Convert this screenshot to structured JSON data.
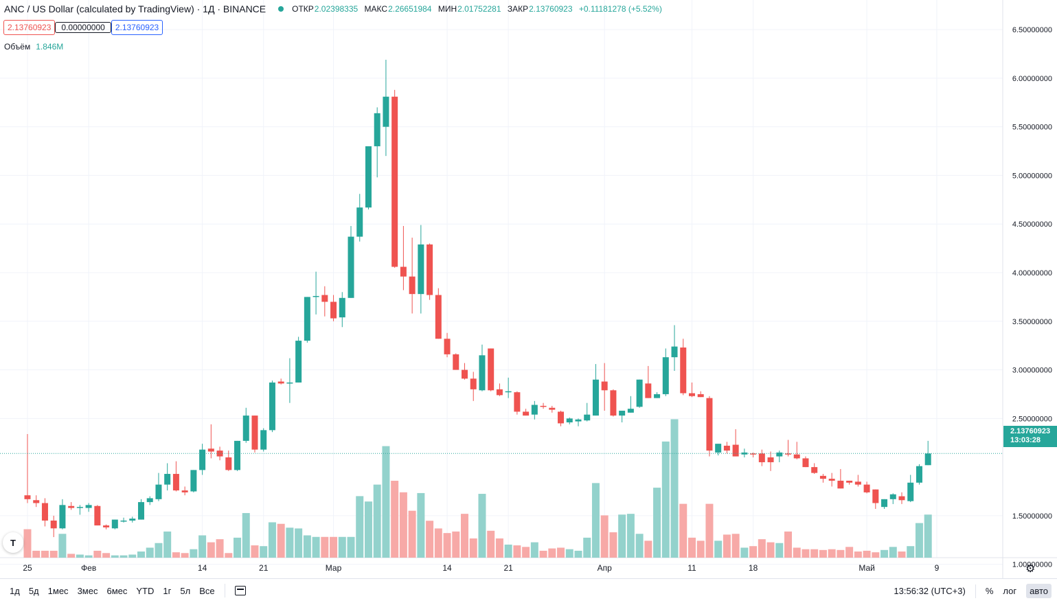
{
  "header": {
    "symbol": "ANC / US Dollar (calculated by TradingView) · 1Д · BINANCE",
    "open_label": "ОТКР",
    "open_value": "2.02398335",
    "high_label": "МАКС",
    "high_value": "2.26651984",
    "low_label": "МИН",
    "low_value": "2.01752281",
    "close_label": "ЗАКР",
    "close_value": "2.13760923",
    "change": "+0.11181278 (+5.52%)"
  },
  "price_boxes": {
    "sell": "2.13760923",
    "spread": "0.00000000",
    "buy": "2.13760923"
  },
  "volume_legend": {
    "label": "Объём",
    "value": "1.846M"
  },
  "last_price": {
    "value": "2.13760923",
    "countdown": "13:03:28"
  },
  "logo_text": "T",
  "timeframes": [
    "1д",
    "5д",
    "1мес",
    "3мес",
    "6мес",
    "YTD",
    "1г",
    "5л",
    "Все"
  ],
  "bottom_right": {
    "clock": "13:56:32 (UTC+3)",
    "percent": "%",
    "log": "лог",
    "auto": "авто"
  },
  "colors": {
    "up": "#26a69a",
    "down": "#ef5350",
    "up_volume": "#93d2cc",
    "down_volume": "#f7a9a7",
    "grid": "#f0f3fa",
    "text": "#131722"
  },
  "icons": {
    "calendar": "calendar-range-icon",
    "settings": "gear-icon"
  },
  "chart_data": {
    "type": "candlestick",
    "ylim": [
      0.8,
      6.55
    ],
    "y_ticks": [
      "6.50000000",
      "6.00000000",
      "5.50000000",
      "5.00000000",
      "4.50000000",
      "4.00000000",
      "3.50000000",
      "3.00000000",
      "2.50000000",
      "1.50000000",
      "1.00000000"
    ],
    "y_tick_values": [
      6.5,
      6.0,
      5.5,
      5.0,
      4.5,
      4.0,
      3.5,
      3.0,
      2.5,
      1.5,
      1.0
    ],
    "x_ticks": [
      {
        "label": "25",
        "index": 0
      },
      {
        "label": "Фев",
        "index": 7
      },
      {
        "label": "14",
        "index": 20
      },
      {
        "label": "21",
        "index": 27
      },
      {
        "label": "Мар",
        "index": 35
      },
      {
        "label": "14",
        "index": 48
      },
      {
        "label": "21",
        "index": 55
      },
      {
        "label": "Апр",
        "index": 66
      },
      {
        "label": "11",
        "index": 76
      },
      {
        "label": "18",
        "index": 83
      },
      {
        "label": "Май",
        "index": 96
      },
      {
        "label": "9",
        "index": 104
      }
    ],
    "candles": [
      [
        1.71,
        2.34,
        1.63,
        1.67,
        0.37
      ],
      [
        1.66,
        1.71,
        1.59,
        1.63,
        0.09
      ],
      [
        1.63,
        1.68,
        1.39,
        1.45,
        0.09
      ],
      [
        1.45,
        1.5,
        1.28,
        1.37,
        0.09
      ],
      [
        1.37,
        1.67,
        1.36,
        1.61,
        0.31
      ],
      [
        1.6,
        1.64,
        1.56,
        1.58,
        0.05
      ],
      [
        1.59,
        1.61,
        1.51,
        1.59,
        0.04
      ],
      [
        1.58,
        1.63,
        1.54,
        1.61,
        0.03
      ],
      [
        1.6,
        1.61,
        1.4,
        1.4,
        0.09
      ],
      [
        1.4,
        1.41,
        1.36,
        1.38,
        0.06
      ],
      [
        1.37,
        1.46,
        1.36,
        1.46,
        0.03
      ],
      [
        1.45,
        1.48,
        1.43,
        1.45,
        0.03
      ],
      [
        1.45,
        1.49,
        1.43,
        1.47,
        0.04
      ],
      [
        1.46,
        1.67,
        1.46,
        1.64,
        0.08
      ],
      [
        1.64,
        1.7,
        1.61,
        1.68,
        0.13
      ],
      [
        1.67,
        1.94,
        1.65,
        1.82,
        0.19
      ],
      [
        1.82,
        2.04,
        1.76,
        1.93,
        0.34
      ],
      [
        1.93,
        2.06,
        1.75,
        1.76,
        0.07
      ],
      [
        1.76,
        1.8,
        1.71,
        1.74,
        0.06
      ],
      [
        1.75,
        1.97,
        1.74,
        1.97,
        0.11
      ],
      [
        1.97,
        2.24,
        1.92,
        2.18,
        0.29
      ],
      [
        2.19,
        2.44,
        2.09,
        2.16,
        0.2
      ],
      [
        2.17,
        2.21,
        2.07,
        2.11,
        0.24
      ],
      [
        2.1,
        2.17,
        1.96,
        1.97,
        0.06
      ],
      [
        1.97,
        2.27,
        1.96,
        2.27,
        0.26
      ],
      [
        2.27,
        2.61,
        2.25,
        2.53,
        0.58
      ],
      [
        2.53,
        2.52,
        2.15,
        2.18,
        0.16
      ],
      [
        2.18,
        2.4,
        2.16,
        2.38,
        0.15
      ],
      [
        2.38,
        2.89,
        2.36,
        2.87,
        0.46
      ],
      [
        2.88,
        2.91,
        2.85,
        2.86,
        0.44
      ],
      [
        2.86,
        3.12,
        2.66,
        2.87,
        0.39
      ],
      [
        2.87,
        3.34,
        2.88,
        3.3,
        0.38
      ],
      [
        3.3,
        3.74,
        3.28,
        3.75,
        0.29
      ],
      [
        3.75,
        4.01,
        3.57,
        3.76,
        0.27
      ],
      [
        3.77,
        3.86,
        3.55,
        3.7,
        0.27
      ],
      [
        3.7,
        3.77,
        3.5,
        3.53,
        0.27
      ],
      [
        3.54,
        3.8,
        3.44,
        3.74,
        0.27
      ],
      [
        3.74,
        4.48,
        3.74,
        4.37,
        0.27
      ],
      [
        4.37,
        4.81,
        4.32,
        4.67,
        0.8
      ],
      [
        4.67,
        5.28,
        4.65,
        5.3,
        0.73
      ],
      [
        5.3,
        5.7,
        4.98,
        5.64,
        0.95
      ],
      [
        5.5,
        6.19,
        5.2,
        5.81,
        1.45
      ],
      [
        5.81,
        5.88,
        4.05,
        4.06,
        1.0
      ],
      [
        4.06,
        4.48,
        3.82,
        3.96,
        0.85
      ],
      [
        3.96,
        4.36,
        3.58,
        3.78,
        0.61
      ],
      [
        3.78,
        4.49,
        3.58,
        4.29,
        0.84
      ],
      [
        4.29,
        4.3,
        3.72,
        3.77,
        0.48
      ],
      [
        3.77,
        3.84,
        3.32,
        3.32,
        0.38
      ],
      [
        3.32,
        3.38,
        3.13,
        3.16,
        0.32
      ],
      [
        3.16,
        3.17,
        3.03,
        3.0,
        0.34
      ],
      [
        3.0,
        3.07,
        2.9,
        2.91,
        0.57
      ],
      [
        2.91,
        2.98,
        2.68,
        2.8,
        0.25
      ],
      [
        2.79,
        3.26,
        2.78,
        3.15,
        0.83
      ],
      [
        3.22,
        3.2,
        2.78,
        2.79,
        0.35
      ],
      [
        2.8,
        2.86,
        2.73,
        2.74,
        0.25
      ],
      [
        2.77,
        2.92,
        2.71,
        2.78,
        0.17
      ],
      [
        2.77,
        2.78,
        2.54,
        2.57,
        0.16
      ],
      [
        2.57,
        2.6,
        2.53,
        2.53,
        0.14
      ],
      [
        2.54,
        2.68,
        2.49,
        2.64,
        0.2
      ],
      [
        2.63,
        2.66,
        2.6,
        2.62,
        0.09
      ],
      [
        2.61,
        2.63,
        2.56,
        2.59,
        0.12
      ],
      [
        2.57,
        2.58,
        2.42,
        2.45,
        0.13
      ],
      [
        2.46,
        2.51,
        2.44,
        2.5,
        0.11
      ],
      [
        2.47,
        2.5,
        2.42,
        2.49,
        0.09
      ],
      [
        2.48,
        2.66,
        2.47,
        2.54,
        0.26
      ],
      [
        2.53,
        3.06,
        2.53,
        2.9,
        0.97
      ],
      [
        2.88,
        3.07,
        2.58,
        2.79,
        0.55
      ],
      [
        2.79,
        2.8,
        2.52,
        2.53,
        0.33
      ],
      [
        2.53,
        2.56,
        2.46,
        2.58,
        0.56
      ],
      [
        2.56,
        2.73,
        2.59,
        2.6,
        0.57
      ],
      [
        2.62,
        2.85,
        2.61,
        2.9,
        0.31
      ],
      [
        2.86,
        3.04,
        2.71,
        2.71,
        0.22
      ],
      [
        2.71,
        2.77,
        2.71,
        2.75,
        0.91
      ],
      [
        2.75,
        3.22,
        2.73,
        3.13,
        1.51
      ],
      [
        3.13,
        3.46,
        2.99,
        3.24,
        1.8
      ],
      [
        3.23,
        3.32,
        2.74,
        2.76,
        0.7
      ],
      [
        2.76,
        2.87,
        2.72,
        2.73,
        0.26
      ],
      [
        2.75,
        2.78,
        2.73,
        2.72,
        0.22
      ],
      [
        2.71,
        2.73,
        2.11,
        2.17,
        0.7
      ],
      [
        2.15,
        2.22,
        2.12,
        2.24,
        0.22
      ],
      [
        2.22,
        2.26,
        2.14,
        2.17,
        0.3
      ],
      [
        2.23,
        2.39,
        2.11,
        2.11,
        0.31
      ],
      [
        2.13,
        2.19,
        2.1,
        2.15,
        0.13
      ],
      [
        2.14,
        2.15,
        2.1,
        2.13,
        0.15
      ],
      [
        2.14,
        2.18,
        2.01,
        2.05,
        0.24
      ],
      [
        2.1,
        2.16,
        1.96,
        2.05,
        0.2
      ],
      [
        2.11,
        2.17,
        2.05,
        2.15,
        0.19
      ],
      [
        2.14,
        2.28,
        2.11,
        2.13,
        0.34
      ],
      [
        2.13,
        2.26,
        2.08,
        2.09,
        0.13
      ],
      [
        2.09,
        2.11,
        2.0,
        2.0,
        0.11
      ],
      [
        2.0,
        2.04,
        1.93,
        1.94,
        0.11
      ],
      [
        1.91,
        1.93,
        1.84,
        1.88,
        0.1
      ],
      [
        1.88,
        1.94,
        1.8,
        1.86,
        0.11
      ],
      [
        1.86,
        1.98,
        1.78,
        1.78,
        0.1
      ],
      [
        1.86,
        1.86,
        1.82,
        1.84,
        0.14
      ],
      [
        1.85,
        1.92,
        1.8,
        1.82,
        0.08
      ],
      [
        1.82,
        1.85,
        1.73,
        1.74,
        0.09
      ],
      [
        1.77,
        1.77,
        1.57,
        1.63,
        0.07
      ],
      [
        1.59,
        1.67,
        1.57,
        1.67,
        0.1
      ],
      [
        1.67,
        1.73,
        1.62,
        1.72,
        0.14
      ],
      [
        1.7,
        1.74,
        1.62,
        1.66,
        0.08
      ],
      [
        1.65,
        1.92,
        1.64,
        1.84,
        0.15
      ],
      [
        1.84,
        2.03,
        1.82,
        2.01,
        0.45
      ],
      [
        2.02,
        2.27,
        2.02,
        2.14,
        0.56
      ]
    ]
  }
}
